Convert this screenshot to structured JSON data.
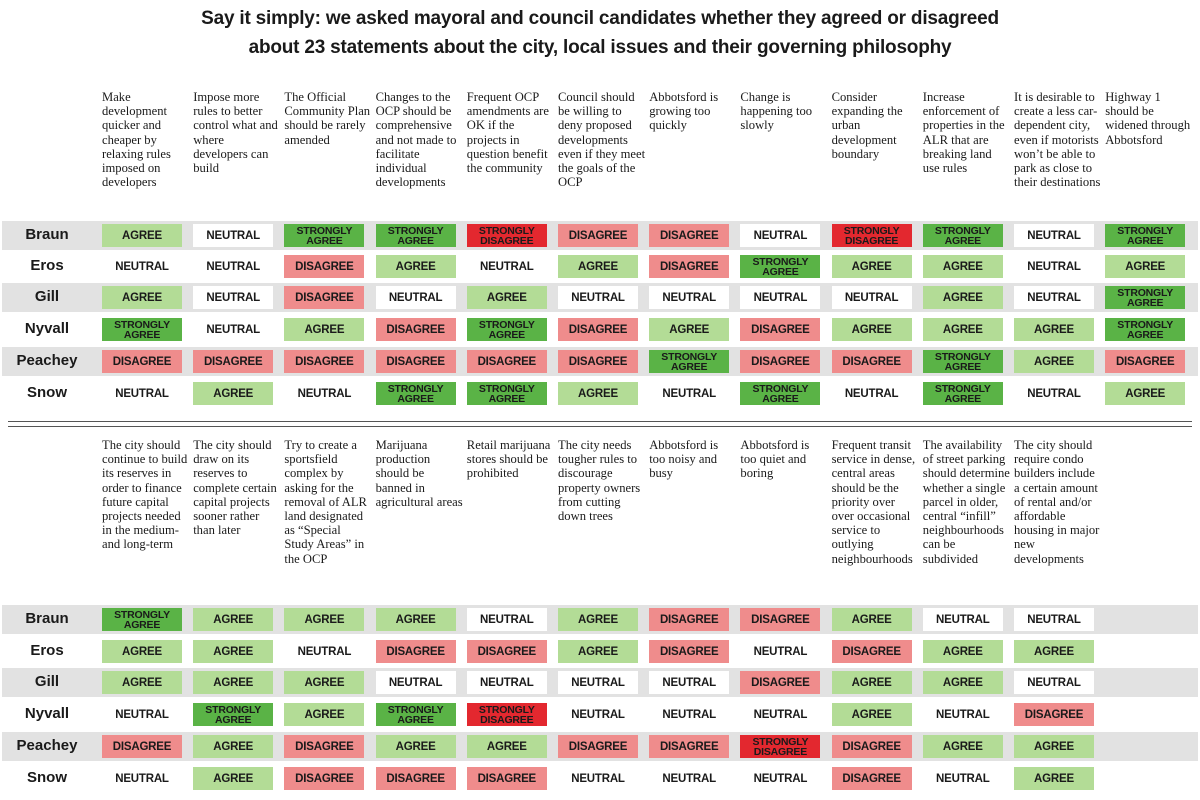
{
  "title_line1": "Say it simply: we asked mayoral and council candidates whether they agreed or disagreed",
  "title_line2": "about 23 statements about the city, local issues and their governing philosophy",
  "colors": {
    "AGREE": "#b3dc96",
    "STRONGLY AGREE": "#5ab346",
    "DISAGREE": "#ef8c8c",
    "STRONGLY DISAGREE": "#e3282f",
    "NEUTRAL": "#ffffff",
    "row_band": "#e2e2e2"
  },
  "chart_data": {
    "type": "table",
    "candidates": [
      "Braun",
      "Eros",
      "Gill",
      "Nyvall",
      "Peachey",
      "Snow"
    ],
    "sections": [
      {
        "statements": [
          "Make development quicker and cheaper by relaxing rules imposed on developers",
          "Impose more rules to better control what and where developers can build",
          "The Official Community Plan should be rarely amended",
          "Changes to the OCP should be comprehensive and not made to facilitate individual developments",
          "Frequent OCP amendments are OK if the projects in question benefit the community",
          "Council should be willing to deny proposed developments even if they meet the goals of the OCP",
          "Abbotsford is growing too quickly",
          "Change is happening too slowly",
          "Consider expanding the urban development boundary",
          "Increase enforcement of properties in the ALR that are breaking land use rules",
          "It is desirable to create a less car-dependent city, even if motorists won’t be able to park as close to their destinations",
          "Highway 1 should be widened through Abbotsford"
        ],
        "responses": [
          [
            "AGREE",
            "NEUTRAL",
            "STRONGLY AGREE",
            "STRONGLY AGREE",
            "STRONGLY DISAGREE",
            "DISAGREE",
            "DISAGREE",
            "NEUTRAL",
            "STRONGLY DISAGREE",
            "STRONGLY AGREE",
            "NEUTRAL",
            "STRONGLY AGREE"
          ],
          [
            "NEUTRAL",
            "NEUTRAL",
            "DISAGREE",
            "AGREE",
            "NEUTRAL",
            "AGREE",
            "DISAGREE",
            "STRONGLY AGREE",
            "AGREE",
            "AGREE",
            "NEUTRAL",
            "AGREE"
          ],
          [
            "AGREE",
            "NEUTRAL",
            "DISAGREE",
            "NEUTRAL",
            "AGREE",
            "NEUTRAL",
            "NEUTRAL",
            "NEUTRAL",
            "NEUTRAL",
            "AGREE",
            "NEUTRAL",
            "STRONGLY AGREE"
          ],
          [
            "STRONGLY AGREE",
            "NEUTRAL",
            "AGREE",
            "DISAGREE",
            "STRONGLY AGREE",
            "DISAGREE",
            "AGREE",
            "DISAGREE",
            "AGREE",
            "AGREE",
            "AGREE",
            "STRONGLY AGREE"
          ],
          [
            "DISAGREE",
            "DISAGREE",
            "DISAGREE",
            "DISAGREE",
            "DISAGREE",
            "DISAGREE",
            "STRONGLY AGREE",
            "DISAGREE",
            "DISAGREE",
            "STRONGLY AGREE",
            "AGREE",
            "DISAGREE"
          ],
          [
            "NEUTRAL",
            "AGREE",
            "NEUTRAL",
            "STRONGLY AGREE",
            "STRONGLY AGREE",
            "AGREE",
            "NEUTRAL",
            "STRONGLY AGREE",
            "NEUTRAL",
            "STRONGLY AGREE",
            "NEUTRAL",
            "AGREE"
          ]
        ]
      },
      {
        "statements": [
          "The city should continue to build its reserves in order to finance future capital projects needed in the medium- and long-term",
          "The city should draw on its reserves to complete certain capital projects sooner rather than later",
          "Try to create a sportsfield complex by asking for the removal of ALR land designated as “Special Study Areas” in the OCP",
          "Marijuana production should be banned in agricultural areas",
          "Retail marijuana stores should be prohibited",
          "The city needs tougher rules to discourage property owners from cutting down trees",
          "Abbotsford is too noisy and busy",
          "Abbotsford is too quiet and boring",
          "Frequent transit service in dense, central areas should be the priority over over occasional service to outlying neighbourhoods",
          "The availability of street parking should determine whether a single parcel in older, central “infill” neighbourhoods can be subdivided",
          "The city should require condo builders include a certain amount of rental and/or affordable housing in major new developments"
        ],
        "responses": [
          [
            "STRONGLY AGREE",
            "AGREE",
            "AGREE",
            "AGREE",
            "NEUTRAL",
            "AGREE",
            "DISAGREE",
            "DISAGREE",
            "AGREE",
            "NEUTRAL",
            "NEUTRAL"
          ],
          [
            "AGREE",
            "AGREE",
            "NEUTRAL",
            "DISAGREE",
            "DISAGREE",
            "AGREE",
            "DISAGREE",
            "NEUTRAL",
            "DISAGREE",
            "AGREE",
            "AGREE"
          ],
          [
            "AGREE",
            "AGREE",
            "AGREE",
            "NEUTRAL",
            "NEUTRAL",
            "NEUTRAL",
            "NEUTRAL",
            "DISAGREE",
            "AGREE",
            "AGREE",
            "NEUTRAL"
          ],
          [
            "NEUTRAL",
            "STRONGLY AGREE",
            "AGREE",
            "STRONGLY AGREE",
            "STRONGLY DISAGREE",
            "NEUTRAL",
            "NEUTRAL",
            "NEUTRAL",
            "AGREE",
            "NEUTRAL",
            "DISAGREE"
          ],
          [
            "DISAGREE",
            "AGREE",
            "DISAGREE",
            "AGREE",
            "AGREE",
            "DISAGREE",
            "DISAGREE",
            "STRONGLY DISAGREE",
            "DISAGREE",
            "AGREE",
            "AGREE"
          ],
          [
            "NEUTRAL",
            "AGREE",
            "DISAGREE",
            "DISAGREE",
            "DISAGREE",
            "NEUTRAL",
            "NEUTRAL",
            "NEUTRAL",
            "DISAGREE",
            "NEUTRAL",
            "AGREE"
          ]
        ]
      }
    ]
  }
}
